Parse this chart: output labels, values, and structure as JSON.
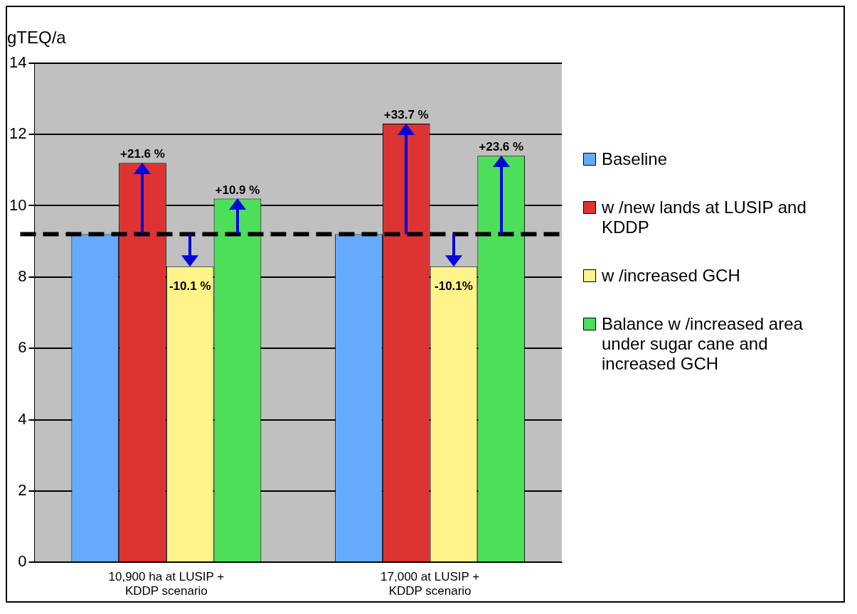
{
  "chart_data": {
    "type": "bar",
    "ylabel": "gTEQ/a",
    "categories": [
      "10,900 ha at LUSIP + KDDP scenario",
      "17,000 at LUSIP + KDDP scenario"
    ],
    "series": [
      {
        "name": "Baseline",
        "color": "#66aaff",
        "values": [
          9.2,
          9.2
        ]
      },
      {
        "name": "w /new  lands at LUSIP and KDDP",
        "color": "#dd3333",
        "values": [
          11.2,
          12.3
        ]
      },
      {
        "name": "w /increased GCH",
        "color": "#fff38a",
        "values": [
          8.3,
          8.3
        ]
      },
      {
        "name": "Balance w /increased area under sugar cane and increased GCH",
        "color": "#4ddf5a",
        "values": [
          10.2,
          11.4
        ]
      }
    ],
    "ylim": [
      0,
      14
    ],
    "yticks": [
      0,
      2,
      4,
      6,
      8,
      10,
      12,
      14
    ],
    "grid": "y",
    "legend": "right",
    "ref_lines": [
      {
        "axis": "y",
        "value": 9.2,
        "color": "#000000",
        "line_style": "dashed"
      }
    ],
    "annotations": [
      {
        "text": "+21.6 %",
        "x": "10,900 ha at LUSIP + KDDP scenario",
        "y": 11.2
      },
      {
        "text": "-10.1 %",
        "x": "10,900 ha at LUSIP + KDDP scenario",
        "y": 8.3
      },
      {
        "text": "+10.9 %",
        "y": 10.2
      },
      {
        "text": "+33.7 %",
        "x": "17,000 at LUSIP + KDDP scenario",
        "y": 12.3
      },
      {
        "text": "-10.1%",
        "x": "17,000 at LUSIP + KDDP scenario",
        "y": 8.3
      },
      {
        "text": "+23.6 %",
        "y": 11.4
      }
    ]
  }
}
